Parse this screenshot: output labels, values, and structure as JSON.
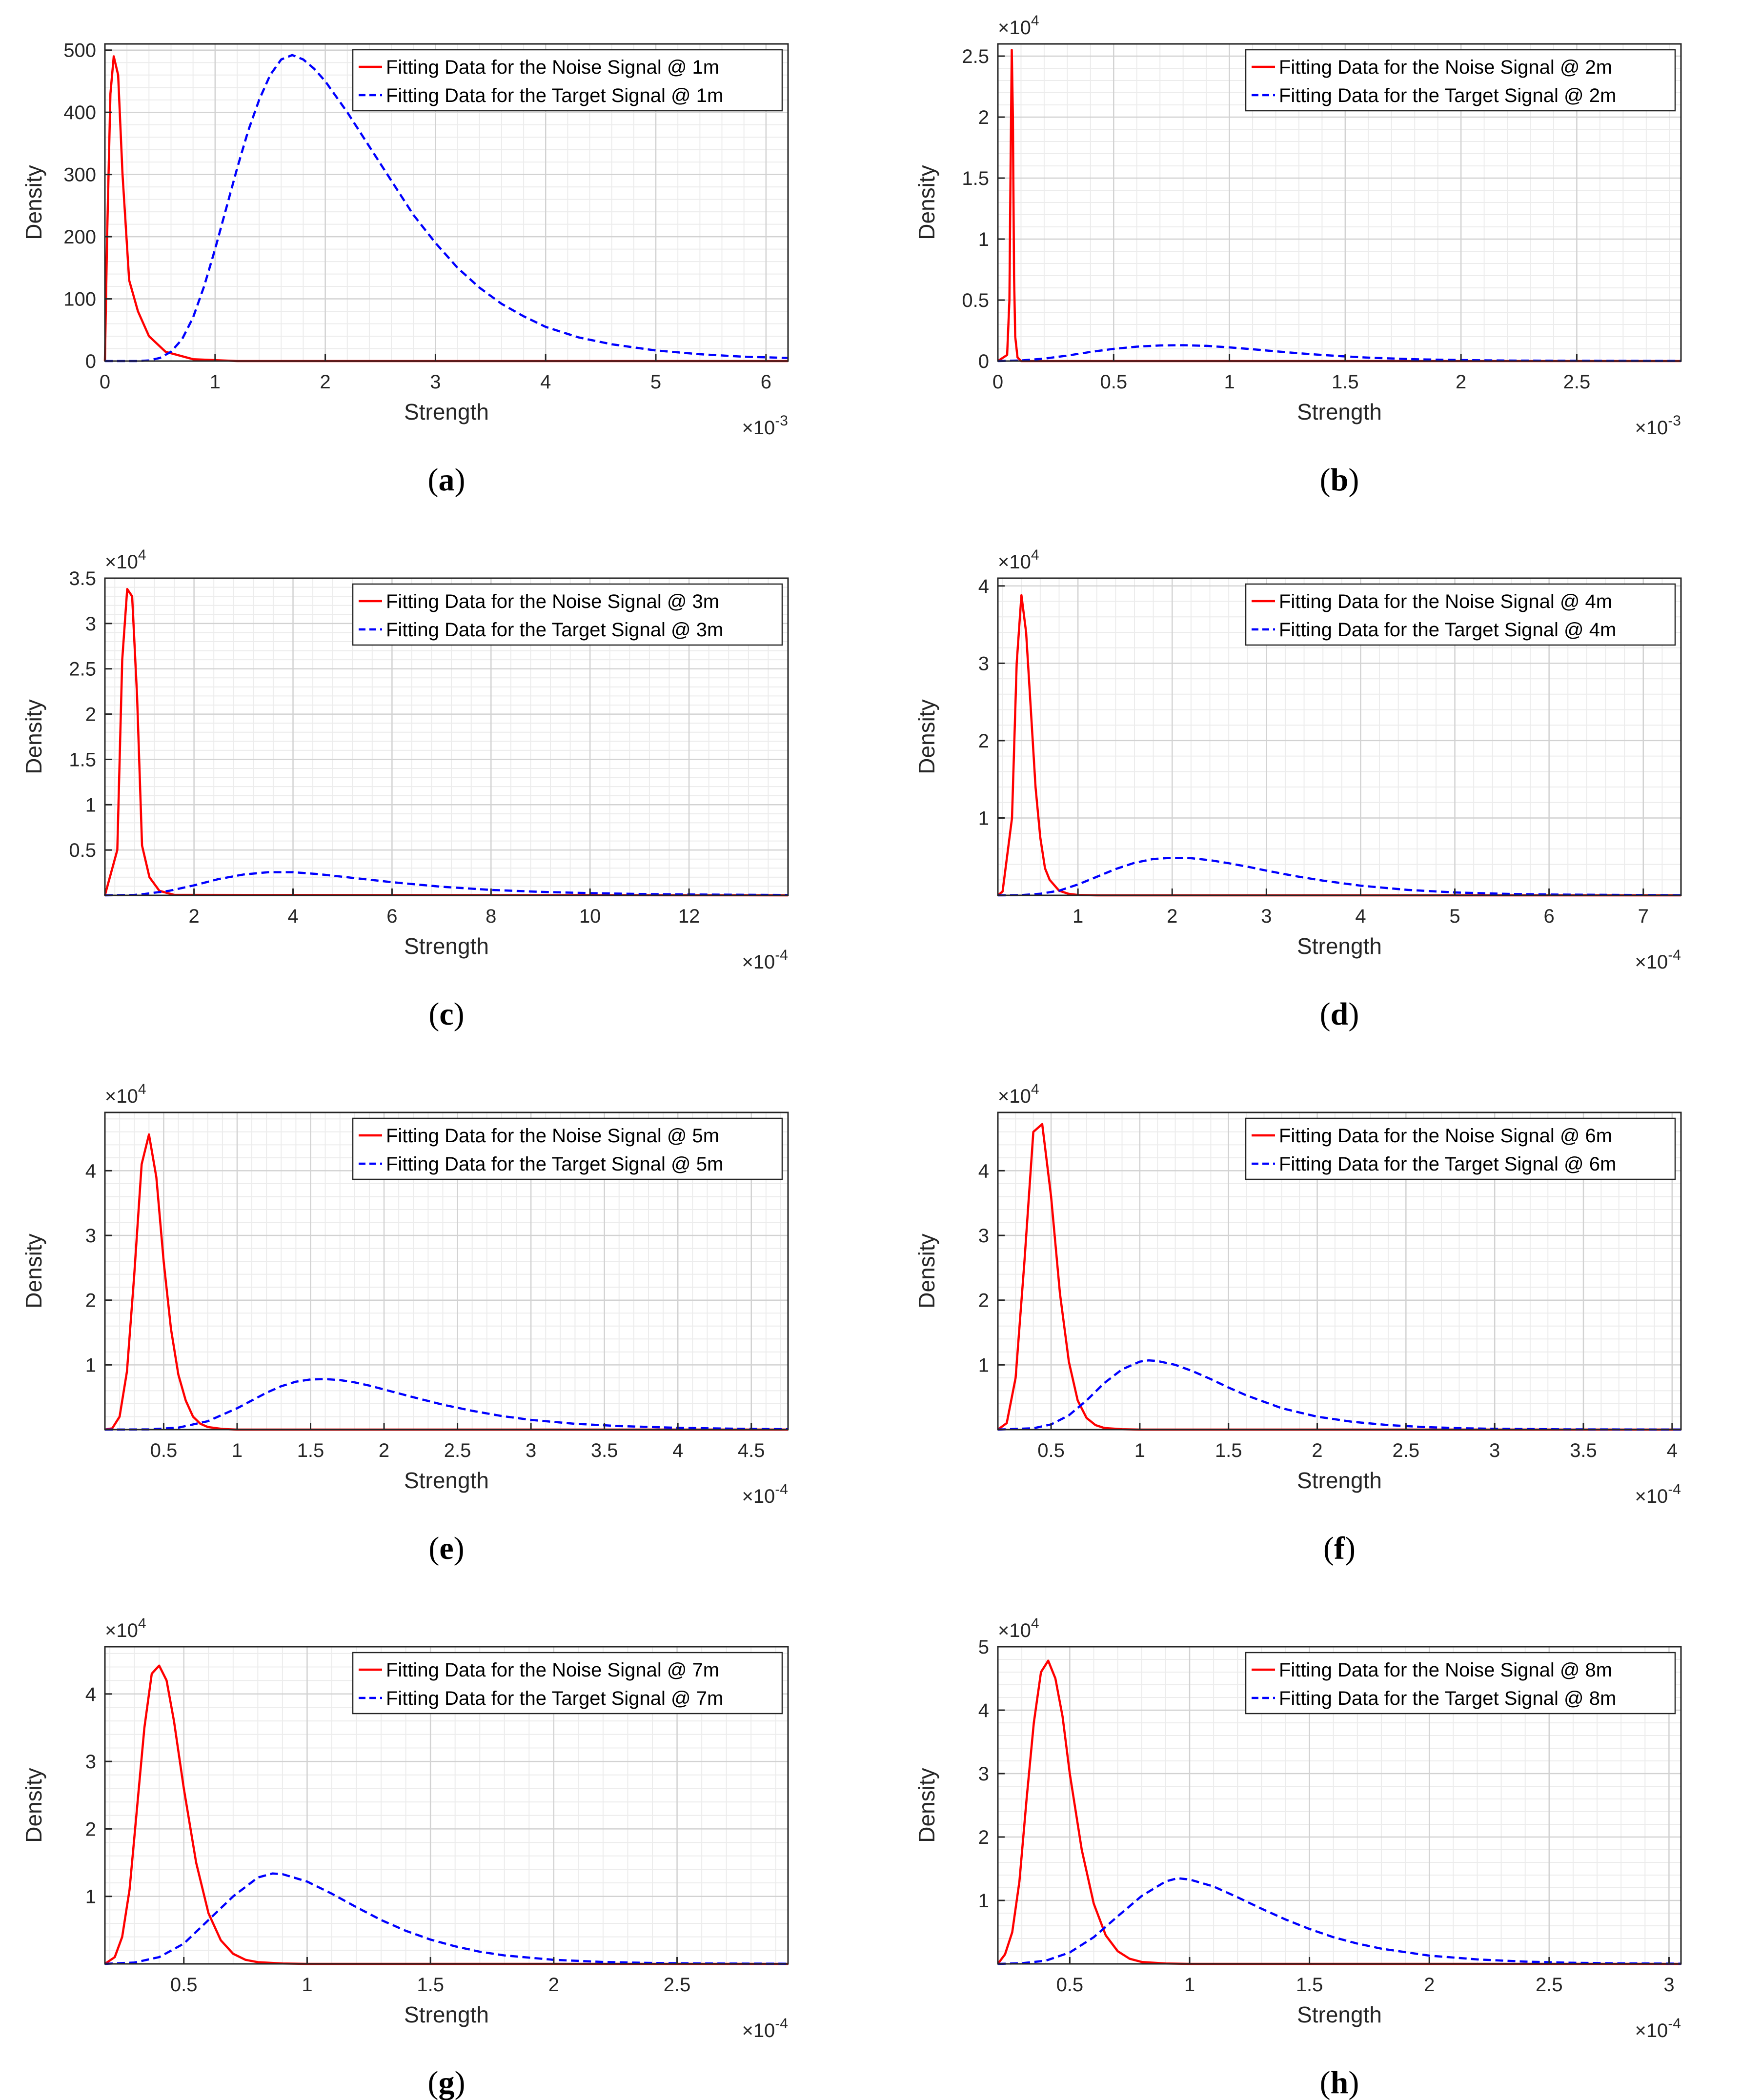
{
  "chart_data": [
    {
      "panel": "a",
      "caption_letter": "a",
      "type": "line",
      "xlabel": "Strength",
      "ylabel": "Density",
      "x_exp": "-3",
      "y_exp": "",
      "xlim": [
        0,
        6.2
      ],
      "ylim": [
        0,
        510
      ],
      "xticks": [
        0,
        1,
        2,
        3,
        4,
        5,
        6
      ],
      "yticks": [
        0,
        100,
        200,
        300,
        400,
        500
      ],
      "grid": true,
      "legend_position": "top-right",
      "series": [
        {
          "name": "Fitting Data for the Noise Signal @ 1m",
          "color": "#ff0000",
          "style": "solid",
          "x": [
            0,
            0.02,
            0.05,
            0.08,
            0.12,
            0.16,
            0.22,
            0.3,
            0.4,
            0.55,
            0.8,
            1.2,
            6.2
          ],
          "y": [
            0,
            200,
            430,
            490,
            460,
            300,
            130,
            80,
            40,
            15,
            3,
            0,
            0
          ]
        },
        {
          "name": "Fitting Data for the Target Signal @ 1m",
          "color": "#0000ff",
          "style": "dashed",
          "x": [
            0,
            0.3,
            0.4,
            0.5,
            0.6,
            0.7,
            0.8,
            0.9,
            1.0,
            1.1,
            1.2,
            1.3,
            1.4,
            1.5,
            1.6,
            1.7,
            1.8,
            1.9,
            2.0,
            2.2,
            2.4,
            2.6,
            2.8,
            3.0,
            3.2,
            3.4,
            3.6,
            3.8,
            4.0,
            4.3,
            4.6,
            5.0,
            5.4,
            5.8,
            6.2
          ],
          "y": [
            0,
            0,
            1,
            5,
            15,
            35,
            70,
            120,
            180,
            245,
            310,
            370,
            420,
            460,
            485,
            492,
            485,
            470,
            450,
            400,
            345,
            290,
            235,
            190,
            150,
            118,
            92,
            72,
            55,
            38,
            27,
            17,
            11,
            7,
            5
          ]
        }
      ]
    },
    {
      "panel": "b",
      "caption_letter": "b",
      "type": "line",
      "xlabel": "Strength",
      "ylabel": "Density",
      "x_exp": "-3",
      "y_exp": "4",
      "xlim": [
        0,
        2.95
      ],
      "ylim": [
        0,
        2.6
      ],
      "xticks": [
        0,
        0.5,
        1,
        1.5,
        2,
        2.5
      ],
      "yticks": [
        0,
        0.5,
        1,
        1.5,
        2,
        2.5
      ],
      "grid": true,
      "legend_position": "top-right",
      "series": [
        {
          "name": "Fitting Data for the Noise Signal @ 2m",
          "color": "#ff0000",
          "style": "solid",
          "x": [
            0,
            0.04,
            0.05,
            0.055,
            0.06,
            0.065,
            0.07,
            0.075,
            0.085,
            0.1,
            2.95
          ],
          "y": [
            0,
            0.05,
            0.5,
            1.6,
            2.55,
            2.0,
            0.7,
            0.2,
            0.03,
            0,
            0
          ]
        },
        {
          "name": "Fitting Data for the Target Signal @ 2m",
          "color": "#0000ff",
          "style": "dashed",
          "x": [
            0,
            0.1,
            0.2,
            0.3,
            0.4,
            0.5,
            0.6,
            0.7,
            0.8,
            0.9,
            1.0,
            1.1,
            1.2,
            1.3,
            1.4,
            1.5,
            1.6,
            1.8,
            2.0,
            2.2,
            2.5,
            2.95
          ],
          "y": [
            0,
            0.005,
            0.02,
            0.045,
            0.075,
            0.1,
            0.118,
            0.128,
            0.13,
            0.125,
            0.112,
            0.097,
            0.08,
            0.064,
            0.05,
            0.038,
            0.028,
            0.015,
            0.008,
            0.004,
            0.002,
            0.001
          ]
        }
      ]
    },
    {
      "panel": "c",
      "caption_letter": "c",
      "type": "line",
      "xlabel": "Strength",
      "ylabel": "Density",
      "x_exp": "-4",
      "y_exp": "4",
      "xlim": [
        0.2,
        14
      ],
      "ylim": [
        0,
        3.5
      ],
      "xticks": [
        2,
        4,
        6,
        8,
        10,
        12
      ],
      "yticks": [
        0.5,
        1,
        1.5,
        2,
        2.5,
        3,
        3.5
      ],
      "grid": true,
      "legend_position": "top-right",
      "series": [
        {
          "name": "Fitting Data for the Noise Signal @ 3m",
          "color": "#ff0000",
          "style": "solid",
          "x": [
            0.2,
            0.45,
            0.55,
            0.65,
            0.75,
            0.85,
            0.95,
            1.1,
            1.3,
            1.6,
            14
          ],
          "y": [
            0,
            0.5,
            2.6,
            3.38,
            3.3,
            2.2,
            0.55,
            0.2,
            0.05,
            0.005,
            0
          ]
        },
        {
          "name": "Fitting Data for the Target Signal @ 3m",
          "color": "#0000ff",
          "style": "dashed",
          "x": [
            0.2,
            0.8,
            1.0,
            1.5,
            2.0,
            2.5,
            3.0,
            3.5,
            4.0,
            4.5,
            5.0,
            5.5,
            6.0,
            7.0,
            8.0,
            9.0,
            10.0,
            11.0,
            12.0,
            14.0
          ],
          "y": [
            0,
            0.005,
            0.015,
            0.05,
            0.11,
            0.18,
            0.23,
            0.255,
            0.255,
            0.235,
            0.205,
            0.175,
            0.145,
            0.095,
            0.06,
            0.038,
            0.024,
            0.015,
            0.009,
            0.004
          ]
        }
      ]
    },
    {
      "panel": "d",
      "caption_letter": "d",
      "type": "line",
      "xlabel": "Strength",
      "ylabel": "Density",
      "x_exp": "-4",
      "y_exp": "4",
      "xlim": [
        0.15,
        7.4
      ],
      "ylim": [
        0,
        4.1
      ],
      "xticks": [
        1,
        2,
        3,
        4,
        5,
        6,
        7
      ],
      "yticks": [
        1,
        2,
        3,
        4
      ],
      "grid": true,
      "legend_position": "top-right",
      "series": [
        {
          "name": "Fitting Data for the Noise Signal @ 4m",
          "color": "#ff0000",
          "style": "solid",
          "x": [
            0.15,
            0.2,
            0.3,
            0.35,
            0.4,
            0.45,
            0.5,
            0.55,
            0.6,
            0.65,
            0.7,
            0.8,
            0.9,
            1.0,
            1.2,
            7.4
          ],
          "y": [
            0,
            0.05,
            1.0,
            3.0,
            3.88,
            3.4,
            2.4,
            1.4,
            0.75,
            0.35,
            0.2,
            0.06,
            0.02,
            0.005,
            0,
            0
          ]
        },
        {
          "name": "Fitting Data for the Target Signal @ 4m",
          "color": "#0000ff",
          "style": "dashed",
          "x": [
            0.15,
            0.4,
            0.6,
            0.8,
            1.0,
            1.2,
            1.4,
            1.6,
            1.8,
            2.0,
            2.2,
            2.4,
            2.6,
            2.8,
            3.0,
            3.3,
            3.6,
            4.0,
            4.5,
            5.0,
            5.5,
            6.0,
            7.4
          ],
          "y": [
            0,
            0.003,
            0.02,
            0.06,
            0.14,
            0.24,
            0.34,
            0.42,
            0.47,
            0.485,
            0.48,
            0.455,
            0.415,
            0.37,
            0.32,
            0.25,
            0.19,
            0.125,
            0.07,
            0.037,
            0.02,
            0.01,
            0.002
          ]
        }
      ]
    },
    {
      "panel": "e",
      "caption_letter": "e",
      "type": "line",
      "xlabel": "Strength",
      "ylabel": "Density",
      "x_exp": "-4",
      "y_exp": "4",
      "xlim": [
        0.1,
        4.75
      ],
      "ylim": [
        0,
        4.9
      ],
      "xticks": [
        0.5,
        1,
        1.5,
        2,
        2.5,
        3,
        3.5,
        4,
        4.5
      ],
      "yticks": [
        1,
        2,
        3,
        4
      ],
      "grid": true,
      "legend_position": "top-right",
      "series": [
        {
          "name": "Fitting Data for the Noise Signal @ 5m",
          "color": "#ff0000",
          "style": "solid",
          "x": [
            0.1,
            0.15,
            0.2,
            0.25,
            0.3,
            0.35,
            0.4,
            0.45,
            0.5,
            0.55,
            0.6,
            0.65,
            0.7,
            0.75,
            0.8,
            0.9,
            1.0,
            4.75
          ],
          "y": [
            0,
            0.02,
            0.2,
            0.9,
            2.4,
            4.1,
            4.56,
            3.9,
            2.6,
            1.55,
            0.85,
            0.45,
            0.2,
            0.09,
            0.04,
            0.01,
            0,
            0
          ]
        },
        {
          "name": "Fitting Data for the Target Signal @ 5m",
          "color": "#0000ff",
          "style": "dashed",
          "x": [
            0.1,
            0.4,
            0.6,
            0.8,
            1.0,
            1.1,
            1.2,
            1.3,
            1.4,
            1.5,
            1.6,
            1.7,
            1.8,
            1.9,
            2.0,
            2.2,
            2.4,
            2.6,
            2.8,
            3.0,
            3.3,
            3.6,
            4.0,
            4.5,
            4.75
          ],
          "y": [
            0,
            0.003,
            0.03,
            0.13,
            0.33,
            0.45,
            0.57,
            0.67,
            0.74,
            0.775,
            0.78,
            0.765,
            0.73,
            0.68,
            0.62,
            0.5,
            0.385,
            0.29,
            0.21,
            0.15,
            0.09,
            0.055,
            0.027,
            0.01,
            0.006
          ]
        }
      ]
    },
    {
      "panel": "f",
      "caption_letter": "f",
      "type": "line",
      "xlabel": "Strength",
      "ylabel": "Density",
      "x_exp": "-4",
      "y_exp": "4",
      "xlim": [
        0.2,
        4.05
      ],
      "ylim": [
        0,
        4.9
      ],
      "xticks": [
        0.5,
        1,
        1.5,
        2,
        2.5,
        3,
        3.5,
        4
      ],
      "yticks": [
        1,
        2,
        3,
        4
      ],
      "grid": true,
      "legend_position": "top-right",
      "series": [
        {
          "name": "Fitting Data for the Noise Signal @ 6m",
          "color": "#ff0000",
          "style": "solid",
          "x": [
            0.2,
            0.25,
            0.3,
            0.35,
            0.4,
            0.45,
            0.5,
            0.55,
            0.6,
            0.65,
            0.7,
            0.75,
            0.8,
            0.9,
            1.0,
            4.05
          ],
          "y": [
            0,
            0.1,
            0.8,
            2.6,
            4.6,
            4.72,
            3.6,
            2.1,
            1.05,
            0.45,
            0.18,
            0.07,
            0.025,
            0.005,
            0,
            0
          ]
        },
        {
          "name": "Fitting Data for the Target Signal @ 6m",
          "color": "#0000ff",
          "style": "dashed",
          "x": [
            0.2,
            0.4,
            0.5,
            0.6,
            0.7,
            0.8,
            0.9,
            1.0,
            1.05,
            1.1,
            1.2,
            1.3,
            1.4,
            1.5,
            1.6,
            1.8,
            2.0,
            2.2,
            2.4,
            2.6,
            2.8,
            3.0,
            3.4,
            4.05
          ],
          "y": [
            0,
            0.02,
            0.08,
            0.22,
            0.45,
            0.72,
            0.93,
            1.05,
            1.07,
            1.06,
            1.0,
            0.9,
            0.78,
            0.65,
            0.53,
            0.33,
            0.2,
            0.12,
            0.07,
            0.04,
            0.022,
            0.012,
            0.004,
            0.001
          ]
        }
      ]
    },
    {
      "panel": "g",
      "caption_letter": "g",
      "type": "line",
      "xlabel": "Strength",
      "ylabel": "Density",
      "x_exp": "-4",
      "y_exp": "4",
      "xlim": [
        0.18,
        2.95
      ],
      "ylim": [
        0,
        4.7
      ],
      "xticks": [
        0.5,
        1,
        1.5,
        2,
        2.5
      ],
      "yticks": [
        1,
        2,
        3,
        4
      ],
      "grid": true,
      "legend_position": "top-right",
      "series": [
        {
          "name": "Fitting Data for the Noise Signal @ 7m",
          "color": "#ff0000",
          "style": "solid",
          "x": [
            0.18,
            0.22,
            0.25,
            0.28,
            0.31,
            0.34,
            0.37,
            0.4,
            0.43,
            0.46,
            0.5,
            0.55,
            0.6,
            0.65,
            0.7,
            0.75,
            0.8,
            0.9,
            1.0,
            2.95
          ],
          "y": [
            0,
            0.1,
            0.4,
            1.1,
            2.3,
            3.5,
            4.3,
            4.42,
            4.2,
            3.6,
            2.6,
            1.5,
            0.75,
            0.35,
            0.15,
            0.06,
            0.025,
            0.005,
            0,
            0
          ]
        },
        {
          "name": "Fitting Data for the Target Signal @ 7m",
          "color": "#0000ff",
          "style": "dashed",
          "x": [
            0.18,
            0.3,
            0.4,
            0.5,
            0.6,
            0.7,
            0.8,
            0.86,
            0.9,
            1.0,
            1.1,
            1.2,
            1.3,
            1.4,
            1.5,
            1.6,
            1.7,
            1.8,
            2.0,
            2.2,
            2.4,
            2.6,
            2.95
          ],
          "y": [
            0,
            0.02,
            0.1,
            0.3,
            0.65,
            1.0,
            1.28,
            1.34,
            1.33,
            1.22,
            1.04,
            0.84,
            0.65,
            0.49,
            0.36,
            0.26,
            0.18,
            0.125,
            0.06,
            0.028,
            0.013,
            0.006,
            0.002
          ]
        }
      ]
    },
    {
      "panel": "h",
      "caption_letter": "h",
      "type": "line",
      "xlabel": "Strength",
      "ylabel": "Density",
      "x_exp": "-4",
      "y_exp": "4",
      "xlim": [
        0.2,
        3.05
      ],
      "ylim": [
        0,
        5.0
      ],
      "xticks": [
        0.5,
        1,
        1.5,
        2,
        2.5,
        3
      ],
      "yticks": [
        1,
        2,
        3,
        4,
        5
      ],
      "grid": true,
      "legend_position": "top-right",
      "series": [
        {
          "name": "Fitting Data for the Noise Signal @ 8m",
          "color": "#ff0000",
          "style": "solid",
          "x": [
            0.2,
            0.23,
            0.26,
            0.29,
            0.32,
            0.35,
            0.38,
            0.41,
            0.44,
            0.47,
            0.5,
            0.55,
            0.6,
            0.65,
            0.7,
            0.75,
            0.8,
            0.9,
            1.0,
            3.05
          ],
          "y": [
            0,
            0.15,
            0.5,
            1.3,
            2.6,
            3.8,
            4.6,
            4.78,
            4.5,
            3.9,
            3.0,
            1.8,
            0.95,
            0.45,
            0.2,
            0.08,
            0.03,
            0.005,
            0,
            0
          ]
        },
        {
          "name": "Fitting Data for the Target Signal @ 8m",
          "color": "#0000ff",
          "style": "dashed",
          "x": [
            0.2,
            0.3,
            0.4,
            0.5,
            0.6,
            0.7,
            0.8,
            0.9,
            0.95,
            1.0,
            1.1,
            1.2,
            1.3,
            1.4,
            1.5,
            1.6,
            1.7,
            1.8,
            2.0,
            2.2,
            2.4,
            2.6,
            2.8,
            3.05
          ],
          "y": [
            0,
            0.01,
            0.05,
            0.18,
            0.42,
            0.75,
            1.07,
            1.3,
            1.35,
            1.33,
            1.22,
            1.05,
            0.87,
            0.7,
            0.55,
            0.42,
            0.32,
            0.24,
            0.13,
            0.07,
            0.035,
            0.017,
            0.008,
            0.003
          ]
        }
      ]
    }
  ]
}
